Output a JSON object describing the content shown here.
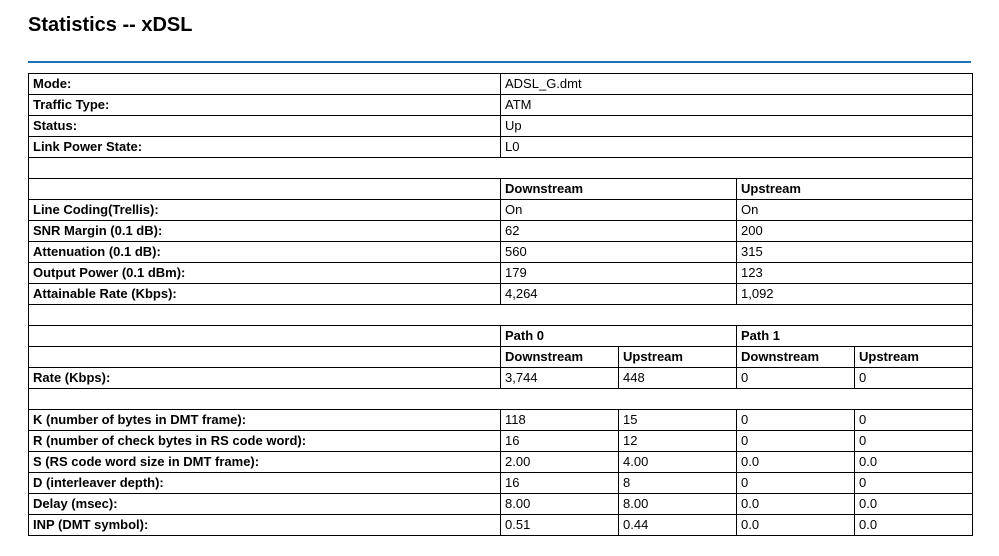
{
  "colors": {
    "rule": "#1e73b8",
    "border": "#000000",
    "text": "#000000",
    "background": "#ffffff"
  },
  "title": "Statistics -- xDSL",
  "kv": {
    "mode": {
      "label": "Mode:",
      "value": "ADSL_G.dmt"
    },
    "traffic": {
      "label": "Traffic Type:",
      "value": "ATM"
    },
    "status": {
      "label": "Status:",
      "value": "Up"
    },
    "linkpwr": {
      "label": "Link Power State:",
      "value": "L0"
    }
  },
  "du_header": {
    "down": "Downstream",
    "up": "Upstream"
  },
  "du": {
    "coding": {
      "label": "Line Coding(Trellis):",
      "down": "On",
      "up": "On"
    },
    "snr": {
      "label": "SNR Margin (0.1 dB):",
      "down": "62",
      "up": "200"
    },
    "attn": {
      "label": "Attenuation (0.1 dB):",
      "down": "560",
      "up": "315"
    },
    "pwr": {
      "label": "Output Power (0.1 dBm):",
      "down": "179",
      "up": "123"
    },
    "attain": {
      "label": "Attainable Rate (Kbps):",
      "down": "4,264",
      "up": "1,092"
    }
  },
  "paths_header": {
    "p0": "Path 0",
    "p1": "Path 1",
    "down": "Downstream",
    "up": "Upstream"
  },
  "paths": {
    "rate": {
      "label": "Rate (Kbps):",
      "p0d": "3,744",
      "p0u": "448",
      "p1d": "0",
      "p1u": "0"
    },
    "k": {
      "label": "K (number of bytes in DMT frame):",
      "p0d": "118",
      "p0u": "15",
      "p1d": "0",
      "p1u": "0"
    },
    "r": {
      "label": "R (number of check bytes in RS code word):",
      "p0d": "16",
      "p0u": "12",
      "p1d": "0",
      "p1u": "0"
    },
    "s": {
      "label": "S (RS code word size in DMT frame):",
      "p0d": "2.00",
      "p0u": "4.00",
      "p1d": "0.0",
      "p1u": "0.0"
    },
    "d": {
      "label": "D (interleaver depth):",
      "p0d": "16",
      "p0u": "8",
      "p1d": "0",
      "p1u": "0"
    },
    "delay": {
      "label": "Delay (msec):",
      "p0d": "8.00",
      "p0u": "8.00",
      "p1d": "0.0",
      "p1u": "0.0"
    },
    "inp": {
      "label": "INP (DMT symbol):",
      "p0d": "0.51",
      "p0u": "0.44",
      "p1d": "0.0",
      "p1u": "0.0"
    }
  }
}
